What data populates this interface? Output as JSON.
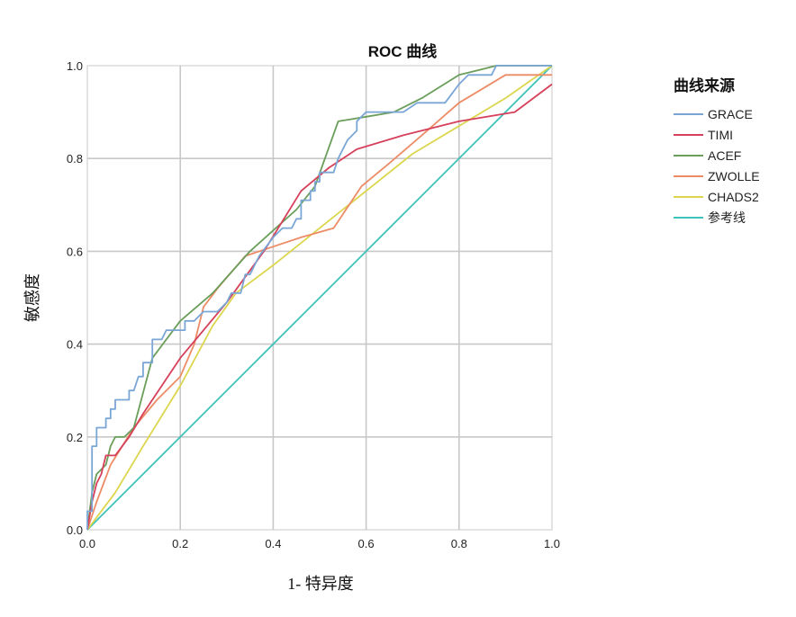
{
  "chart_data": {
    "type": "line",
    "title": "ROC 曲线",
    "xlabel": "1- 特异度",
    "ylabel": "敏感度",
    "xlim": [
      0,
      1
    ],
    "ylim": [
      0,
      1
    ],
    "grid": true,
    "legend_title": "曲线来源",
    "legend_placement": "right",
    "x_ticks": [
      "0.0",
      "0.2",
      "0.4",
      "0.6",
      "0.8",
      "1.0"
    ],
    "y_ticks": [
      "0.0",
      "0.2",
      "0.4",
      "0.6",
      "0.8",
      "1.0"
    ],
    "footer_text": "",
    "series": [
      {
        "name": "GRACE",
        "color": "#7aa6d6",
        "points": [
          [
            0,
            0
          ],
          [
            0,
            0.04
          ],
          [
            0.01,
            0.04
          ],
          [
            0.01,
            0.18
          ],
          [
            0.02,
            0.18
          ],
          [
            0.02,
            0.22
          ],
          [
            0.04,
            0.22
          ],
          [
            0.04,
            0.24
          ],
          [
            0.05,
            0.24
          ],
          [
            0.05,
            0.26
          ],
          [
            0.06,
            0.26
          ],
          [
            0.06,
            0.28
          ],
          [
            0.09,
            0.28
          ],
          [
            0.09,
            0.3
          ],
          [
            0.1,
            0.3
          ],
          [
            0.11,
            0.33
          ],
          [
            0.12,
            0.33
          ],
          [
            0.12,
            0.36
          ],
          [
            0.14,
            0.36
          ],
          [
            0.14,
            0.41
          ],
          [
            0.16,
            0.41
          ],
          [
            0.17,
            0.43
          ],
          [
            0.21,
            0.43
          ],
          [
            0.21,
            0.45
          ],
          [
            0.23,
            0.45
          ],
          [
            0.25,
            0.47
          ],
          [
            0.28,
            0.47
          ],
          [
            0.3,
            0.49
          ],
          [
            0.31,
            0.51
          ],
          [
            0.33,
            0.51
          ],
          [
            0.34,
            0.55
          ],
          [
            0.35,
            0.55
          ],
          [
            0.37,
            0.59
          ],
          [
            0.4,
            0.63
          ],
          [
            0.42,
            0.65
          ],
          [
            0.44,
            0.65
          ],
          [
            0.45,
            0.67
          ],
          [
            0.46,
            0.67
          ],
          [
            0.46,
            0.71
          ],
          [
            0.48,
            0.71
          ],
          [
            0.48,
            0.73
          ],
          [
            0.49,
            0.73
          ],
          [
            0.49,
            0.75
          ],
          [
            0.5,
            0.75
          ],
          [
            0.5,
            0.77
          ],
          [
            0.53,
            0.77
          ],
          [
            0.54,
            0.8
          ],
          [
            0.55,
            0.82
          ],
          [
            0.56,
            0.84
          ],
          [
            0.58,
            0.86
          ],
          [
            0.58,
            0.88
          ],
          [
            0.6,
            0.9
          ],
          [
            0.66,
            0.9
          ],
          [
            0.68,
            0.9
          ],
          [
            0.71,
            0.92
          ],
          [
            0.77,
            0.92
          ],
          [
            0.8,
            0.96
          ],
          [
            0.82,
            0.98
          ],
          [
            0.87,
            0.98
          ],
          [
            0.88,
            1
          ],
          [
            1,
            1
          ]
        ]
      },
      {
        "name": "TIMI",
        "color": "#d6405a",
        "points": [
          [
            0,
            0
          ],
          [
            0.01,
            0.06
          ],
          [
            0.02,
            0.1
          ],
          [
            0.03,
            0.12
          ],
          [
            0.04,
            0.16
          ],
          [
            0.06,
            0.16
          ],
          [
            0.09,
            0.2
          ],
          [
            0.12,
            0.25
          ],
          [
            0.2,
            0.37
          ],
          [
            0.3,
            0.49
          ],
          [
            0.38,
            0.6
          ],
          [
            0.46,
            0.73
          ],
          [
            0.52,
            0.78
          ],
          [
            0.58,
            0.82
          ],
          [
            0.68,
            0.85
          ],
          [
            0.8,
            0.88
          ],
          [
            0.92,
            0.9
          ],
          [
            1,
            0.96
          ]
        ]
      },
      {
        "name": "ACEF",
        "color": "#6a9e5a",
        "points": [
          [
            0,
            0
          ],
          [
            0.01,
            0.08
          ],
          [
            0.02,
            0.12
          ],
          [
            0.04,
            0.14
          ],
          [
            0.05,
            0.18
          ],
          [
            0.06,
            0.2
          ],
          [
            0.08,
            0.2
          ],
          [
            0.1,
            0.22
          ],
          [
            0.14,
            0.37
          ],
          [
            0.2,
            0.45
          ],
          [
            0.27,
            0.51
          ],
          [
            0.35,
            0.6
          ],
          [
            0.45,
            0.69
          ],
          [
            0.49,
            0.74
          ],
          [
            0.54,
            0.88
          ],
          [
            0.6,
            0.89
          ],
          [
            0.66,
            0.9
          ],
          [
            0.72,
            0.93
          ],
          [
            0.8,
            0.98
          ],
          [
            0.84,
            0.99
          ],
          [
            0.88,
            1
          ],
          [
            1,
            1
          ]
        ]
      },
      {
        "name": "ZWOLLE",
        "color": "#ec8c66",
        "points": [
          [
            0,
            0
          ],
          [
            0.02,
            0.06
          ],
          [
            0.05,
            0.14
          ],
          [
            0.1,
            0.22
          ],
          [
            0.15,
            0.28
          ],
          [
            0.2,
            0.33
          ],
          [
            0.23,
            0.4
          ],
          [
            0.25,
            0.48
          ],
          [
            0.28,
            0.52
          ],
          [
            0.34,
            0.59
          ],
          [
            0.4,
            0.61
          ],
          [
            0.46,
            0.63
          ],
          [
            0.53,
            0.65
          ],
          [
            0.59,
            0.74
          ],
          [
            0.65,
            0.79
          ],
          [
            0.72,
            0.85
          ],
          [
            0.8,
            0.92
          ],
          [
            0.9,
            0.98
          ],
          [
            1,
            0.98
          ]
        ]
      },
      {
        "name": "CHADS2",
        "color": "#dcd64e",
        "points": [
          [
            0,
            0
          ],
          [
            0.06,
            0.08
          ],
          [
            0.12,
            0.18
          ],
          [
            0.2,
            0.31
          ],
          [
            0.27,
            0.44
          ],
          [
            0.32,
            0.51
          ],
          [
            0.4,
            0.57
          ],
          [
            0.5,
            0.65
          ],
          [
            0.6,
            0.73
          ],
          [
            0.7,
            0.81
          ],
          [
            0.8,
            0.87
          ],
          [
            0.9,
            0.93
          ],
          [
            1,
            1
          ]
        ]
      },
      {
        "name": "参考线",
        "color": "#3cc4bc",
        "points": [
          [
            0,
            0
          ],
          [
            1,
            1
          ]
        ]
      }
    ]
  }
}
